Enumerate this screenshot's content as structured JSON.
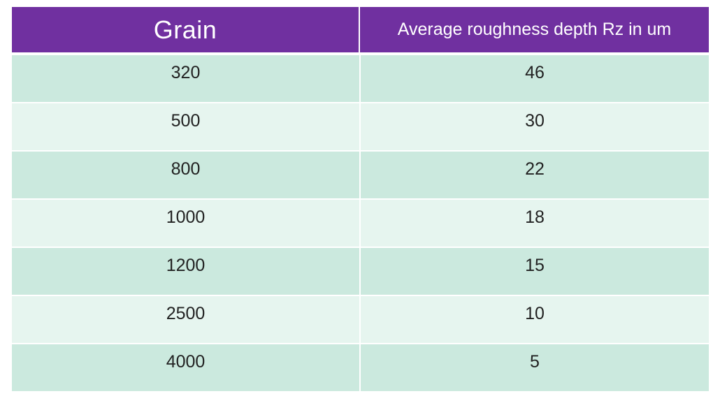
{
  "chart_data": {
    "type": "table",
    "columns": [
      "Grain",
      "Average roughness depth Rz in um"
    ],
    "rows": [
      [
        "320",
        "46"
      ],
      [
        "500",
        "30"
      ],
      [
        "800",
        "22"
      ],
      [
        "1000",
        "18"
      ],
      [
        "1200",
        "15"
      ],
      [
        "2500",
        "10"
      ],
      [
        "4000",
        "5"
      ]
    ]
  },
  "colors": {
    "header_bg": "#7030a0",
    "header_text": "#ffffff",
    "row_dark": "#cbe9de",
    "row_light": "#e6f5ef"
  }
}
